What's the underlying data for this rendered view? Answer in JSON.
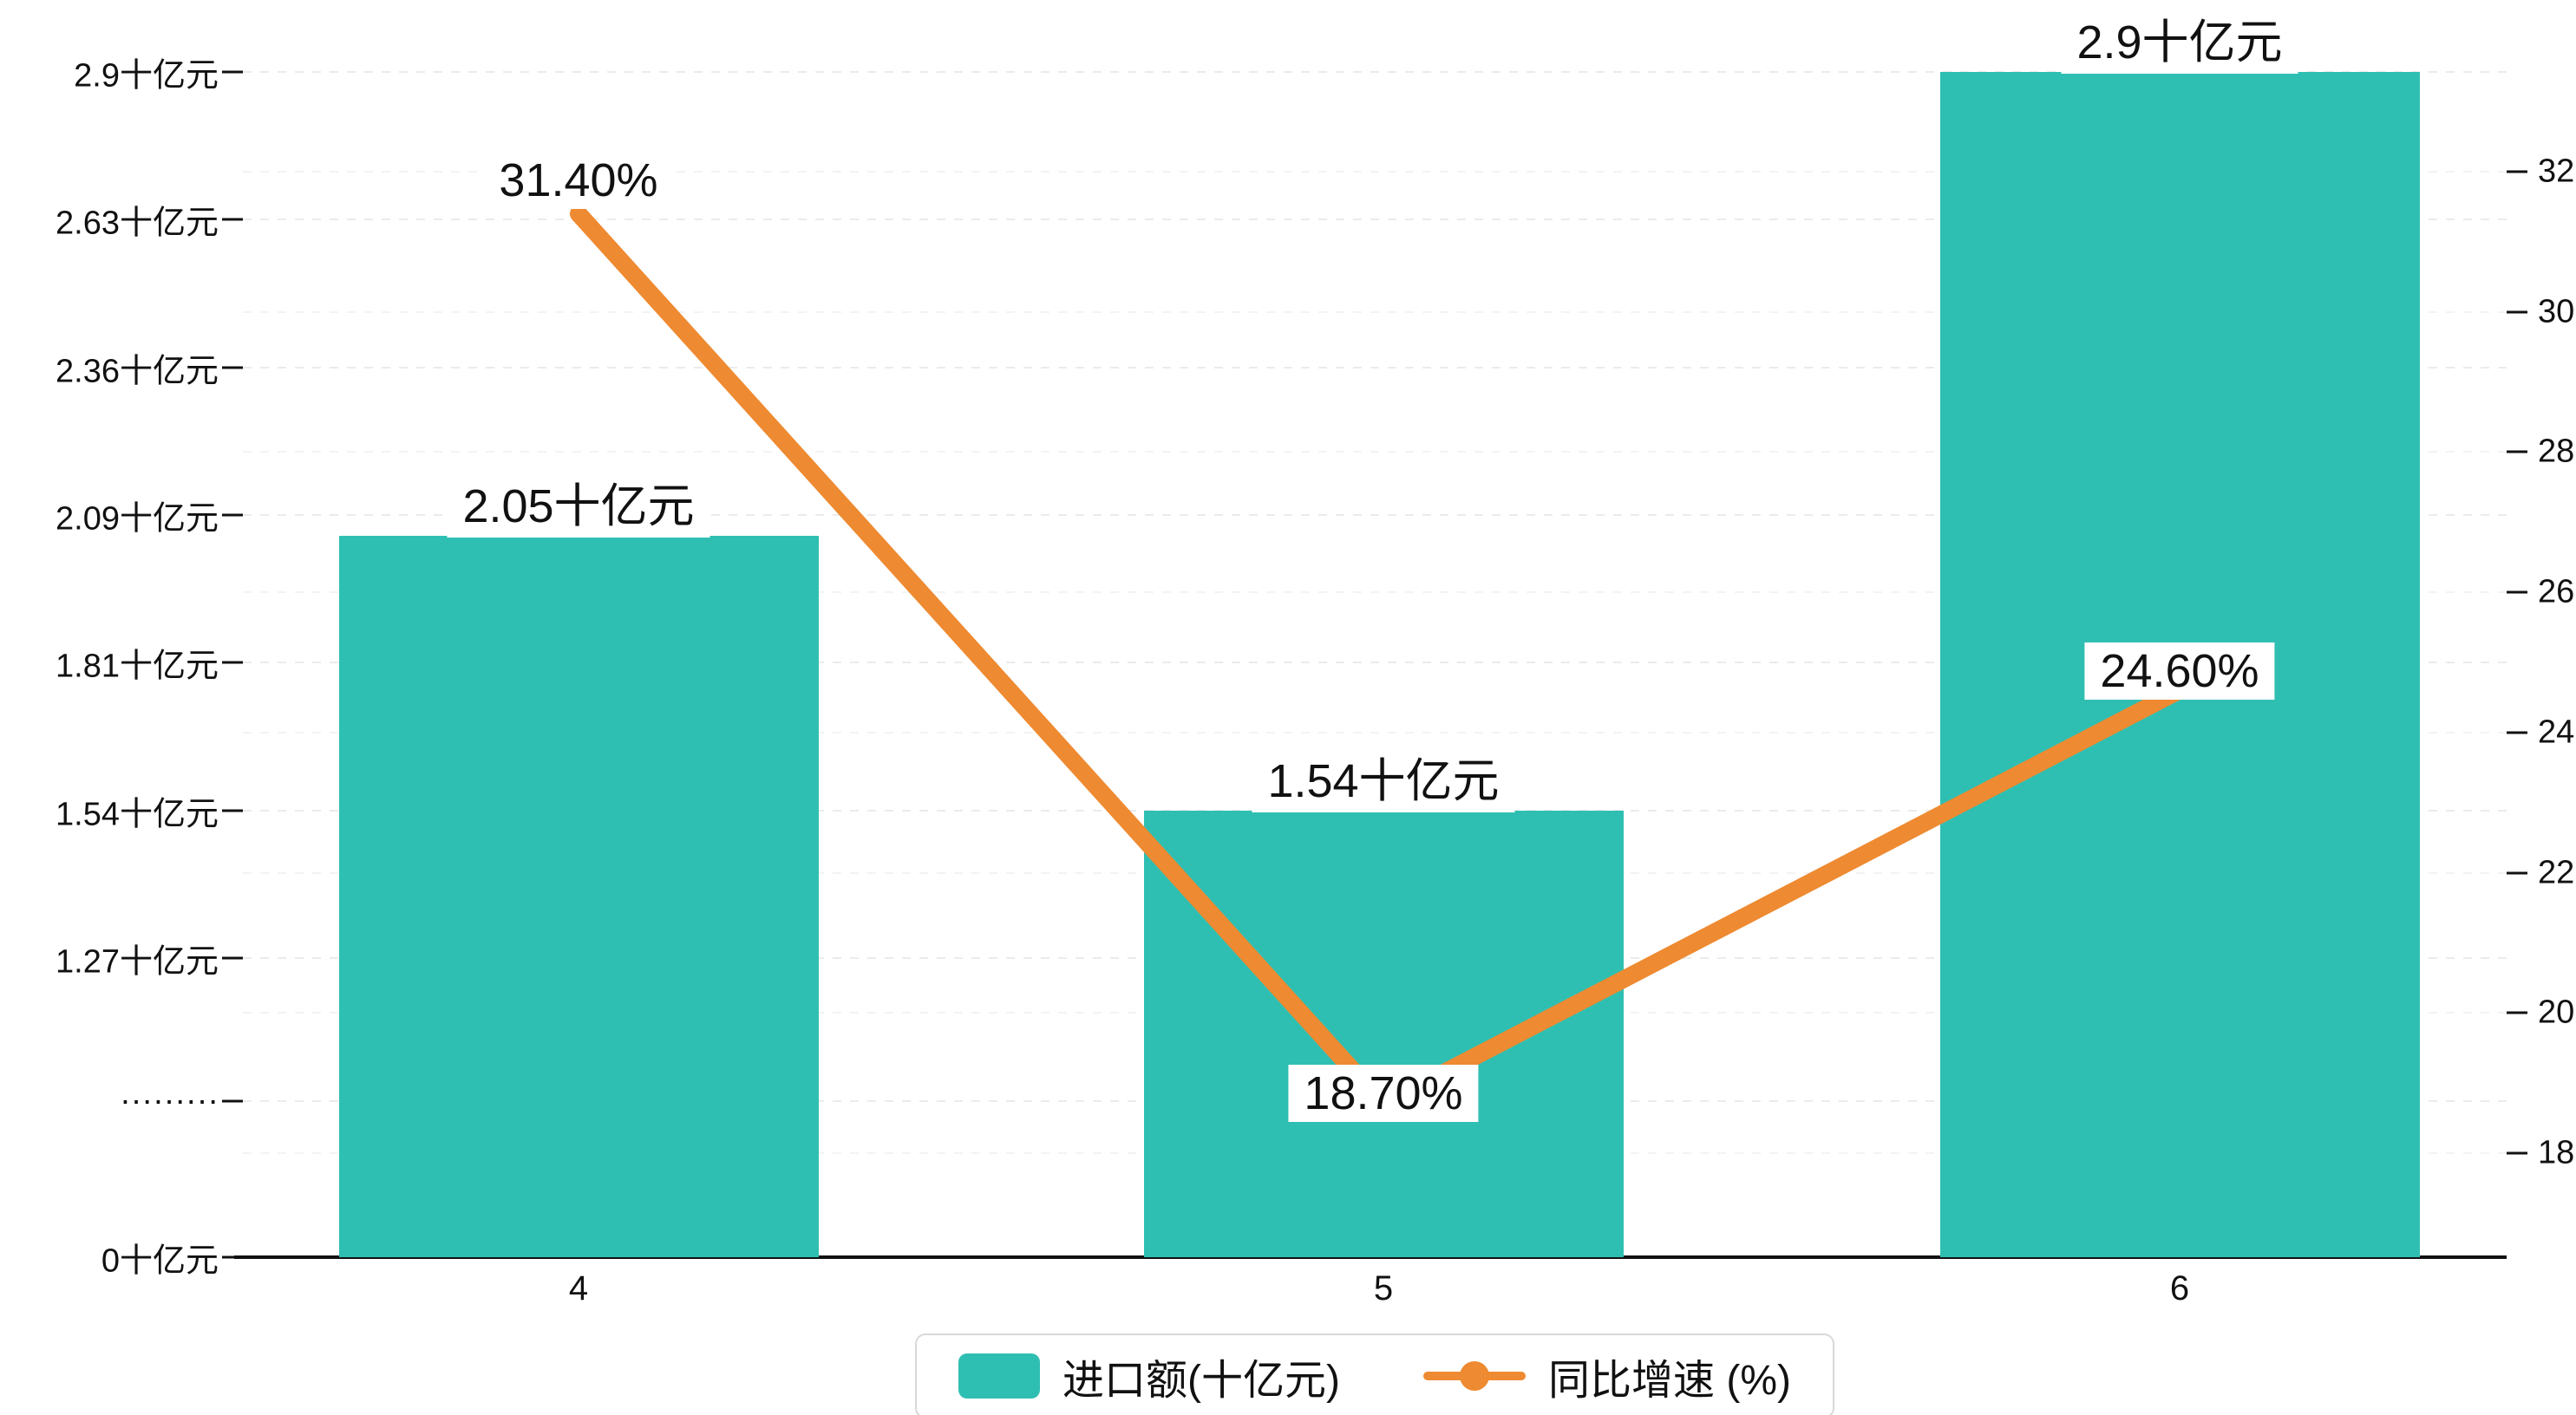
{
  "chart_data": {
    "type": "bar",
    "combo": "bar+line dual-axis",
    "categories": [
      "4",
      "5",
      "6"
    ],
    "series": [
      {
        "name": "进口额(十亿元)",
        "type": "bar",
        "axis": "left",
        "color": "#2fbfb2",
        "values": [
          2.05,
          1.54,
          2.9
        ]
      },
      {
        "name": "同比增速 (%)",
        "type": "line",
        "axis": "right",
        "color": "#ee8a31",
        "values": [
          31.4,
          18.7,
          24.6
        ]
      }
    ],
    "bar_labels": [
      "2.05十亿元",
      "1.54十亿元",
      "2.9十亿元"
    ],
    "line_labels": [
      "31.40%",
      "18.70%",
      "24.60%"
    ],
    "left_axis": {
      "unit": "十亿元",
      "ticks": [
        "0十亿元",
        "·········",
        "1.27十亿元",
        "1.54十亿元",
        "1.81十亿元",
        "2.09十亿元",
        "2.36十亿元",
        "2.63十亿元",
        "2.9十亿元"
      ]
    },
    "right_axis": {
      "unit": "%",
      "ticks": [
        "18",
        "20",
        "22",
        "24",
        "26",
        "28",
        "30",
        "32"
      ],
      "range": [
        17,
        33
      ]
    },
    "legend": {
      "position": "bottom",
      "items": [
        {
          "label": "进口额(十亿元)",
          "marker": "bar-swatch"
        },
        {
          "label": "同比增速 (%)",
          "marker": "line-dot"
        }
      ]
    },
    "grid": {
      "horizontal": "dashed",
      "vertical": "none"
    }
  },
  "colors": {
    "bar": "#2fbfb2",
    "line": "#ee8a31",
    "grid": "#ebebeb",
    "axis": "#111111",
    "text": "#111111",
    "label_bg": "#ffffff",
    "legend_border": "#d8d8d8"
  }
}
